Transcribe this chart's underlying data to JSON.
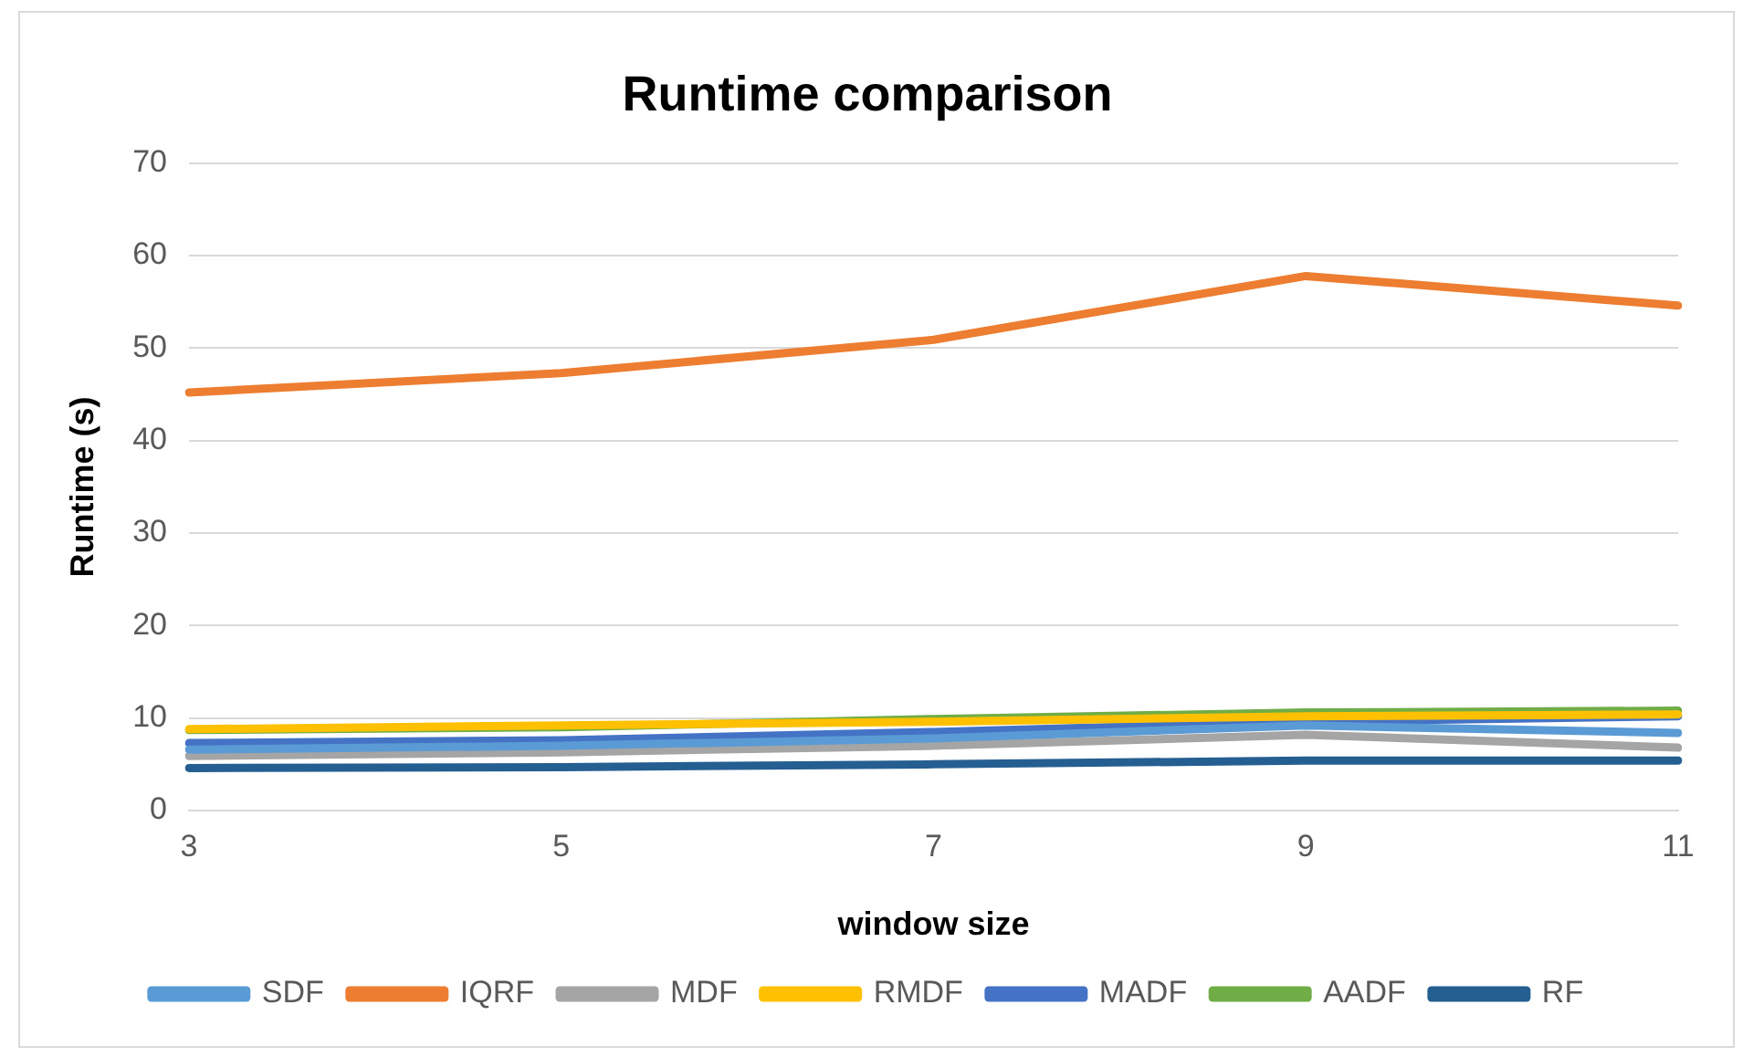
{
  "chart_data": {
    "type": "line",
    "title": "Runtime comparison",
    "xlabel": "window size",
    "ylabel": "Runtime (s)",
    "categories": [
      "3",
      "5",
      "7",
      "9",
      "11"
    ],
    "series": [
      {
        "name": "SDF",
        "color": "#5b9bd5",
        "values": [
          6.6,
          7.0,
          7.8,
          9.2,
          8.4
        ]
      },
      {
        "name": "IQRF",
        "color": "#ed7d31",
        "values": [
          45.2,
          47.3,
          50.9,
          57.8,
          54.6
        ]
      },
      {
        "name": "MDF",
        "color": "#a5a5a5",
        "values": [
          5.9,
          6.3,
          7.0,
          8.2,
          6.8
        ]
      },
      {
        "name": "RMDF",
        "color": "#ffc000",
        "values": [
          8.8,
          9.2,
          9.6,
          10.2,
          10.4
        ]
      },
      {
        "name": "MADF",
        "color": "#4472c4",
        "values": [
          7.3,
          7.6,
          8.5,
          9.6,
          10.2
        ]
      },
      {
        "name": "AADF",
        "color": "#70ad47",
        "values": [
          8.7,
          9.0,
          9.9,
          10.6,
          10.8
        ]
      },
      {
        "name": "RF",
        "color": "#255e91",
        "values": [
          4.6,
          4.7,
          5.0,
          5.4,
          5.4
        ]
      }
    ],
    "ylim": [
      0,
      70
    ],
    "yticks": [
      0,
      10,
      20,
      30,
      40,
      50,
      60,
      70
    ],
    "grid": "y",
    "legend": "bottom",
    "marker": "none",
    "line_style": "solid"
  }
}
